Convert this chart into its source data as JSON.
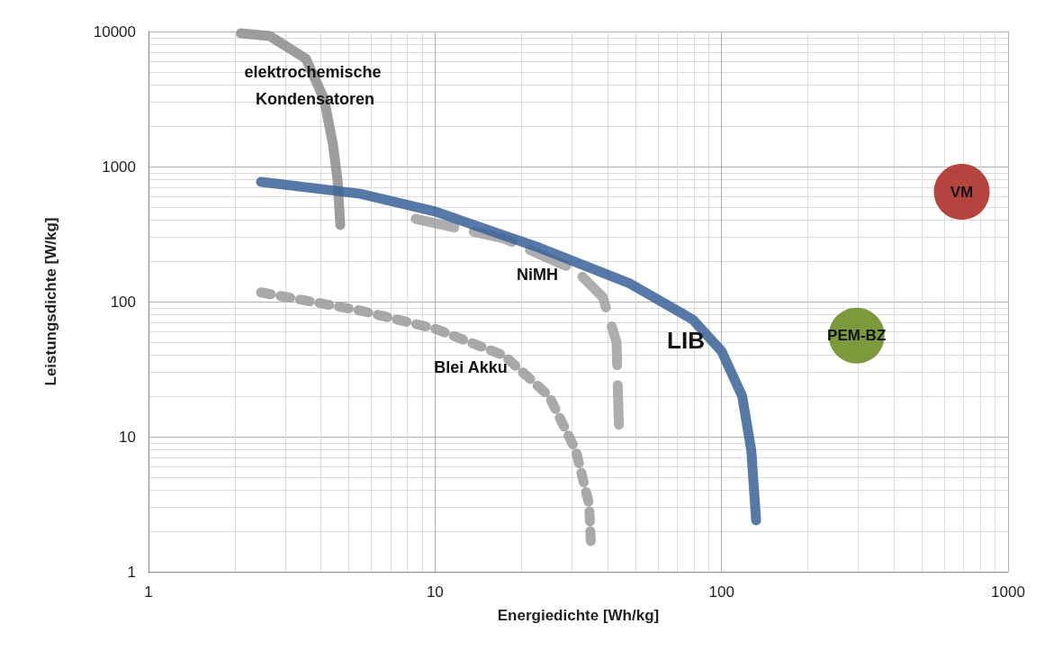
{
  "chart_data": {
    "type": "line",
    "xlabel": "Energiedichte [Wh/kg]",
    "ylabel": "Leistungsdichte [W/kg]",
    "log": "xy",
    "grid": true,
    "marker": "none",
    "xlim": [
      1,
      1000
    ],
    "xticks": [
      1,
      10,
      100,
      1000
    ],
    "ylim": [
      1,
      10000
    ],
    "yticks": [
      1,
      10,
      100,
      1000,
      10000
    ],
    "series": [
      {
        "color": "#8c8c8c",
        "line_style": "solid",
        "x": [
          2.1,
          2.65,
          3.54,
          4.1,
          4.4,
          4.57,
          4.67
        ],
        "values": [
          9700,
          9260,
          6300,
          3160,
          1470,
          790,
          369
        ]
      },
      {
        "color": "#a0a0a0",
        "line_style": "dashed",
        "x": [
          8.56,
          17.4,
          31,
          38.5,
          43,
          43.9
        ],
        "values": [
          410,
          293,
          171,
          108,
          50,
          10.8
        ]
      },
      {
        "color": "#9a9a9a",
        "line_style": "dotted",
        "x": [
          2.47,
          5.47,
          10,
          17.4,
          25,
          31,
          34.5,
          35
        ],
        "values": [
          117,
          86,
          63,
          40,
          20,
          7.9,
          3.16,
          1.63
        ]
      },
      {
        "color": "#3a6199",
        "line_style": "solid",
        "x": [
          2.47,
          5.47,
          10,
          23.2,
          47.9,
          79.4,
          100,
          118,
          127,
          132
        ],
        "values": [
          770,
          630,
          465,
          250,
          136,
          73.6,
          43,
          20,
          7.9,
          2.4
        ]
      },
      {
        "type": "scatter",
        "name": "VM",
        "marker": "circle",
        "color": "#b5443e",
        "x": [
          689
        ],
        "values": [
          650
        ]
      },
      {
        "type": "scatter",
        "name": "PEM-BZ",
        "marker": "circle",
        "color": "#7c9a3c",
        "x": [
          296
        ],
        "values": [
          56
        ]
      }
    ],
    "annotations": [
      "elektrochemische Kondensatoren",
      "NiMH",
      "LIB",
      "Blei Akku"
    ]
  }
}
